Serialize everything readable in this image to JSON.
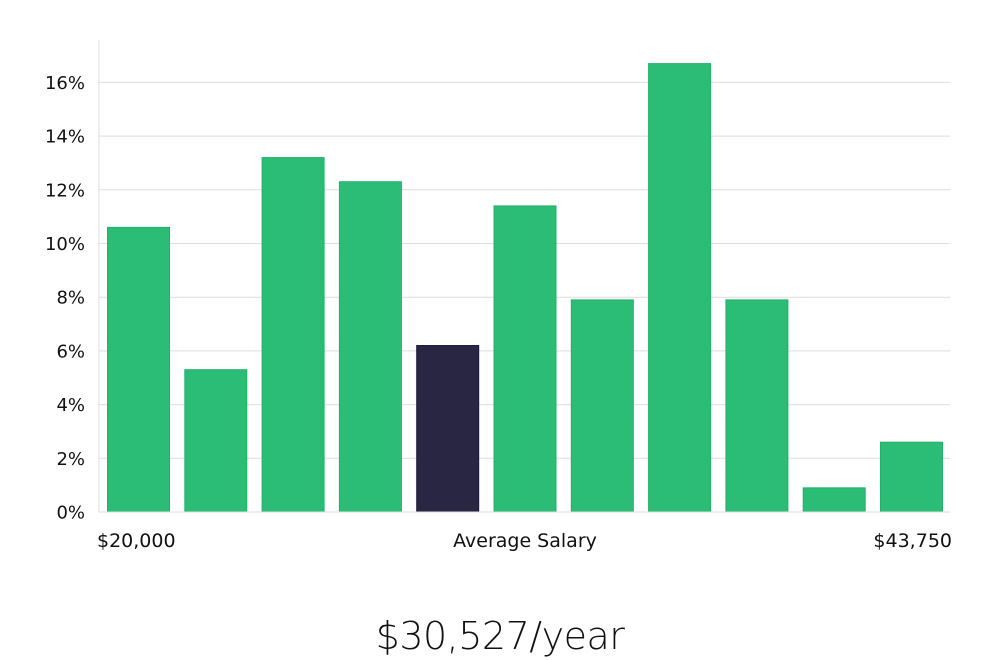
{
  "colors": {
    "bar": "#2bbd76",
    "bar_highlight": "#282642",
    "grid": "#dedede",
    "axis": "#dddddd",
    "text": "#111111"
  },
  "chart_data": {
    "type": "bar",
    "title": "",
    "xlabel": "Average Salary",
    "ylabel": "",
    "x_start_label": "$20,000",
    "x_end_label": "$43,750",
    "ylim": [
      0,
      17.5
    ],
    "ytick_values": [
      0,
      2,
      4,
      6,
      8,
      10,
      12,
      14,
      16
    ],
    "ytick_labels": [
      "0%",
      "2%",
      "4%",
      "6%",
      "8%",
      "10%",
      "12%",
      "14%",
      "16%"
    ],
    "values": [
      10.6,
      5.3,
      13.2,
      12.3,
      6.2,
      11.4,
      7.9,
      16.7,
      7.9,
      0.9,
      2.6
    ],
    "highlight_index": 4,
    "grid": true
  },
  "summary": {
    "average_salary": "$30,527/year"
  }
}
